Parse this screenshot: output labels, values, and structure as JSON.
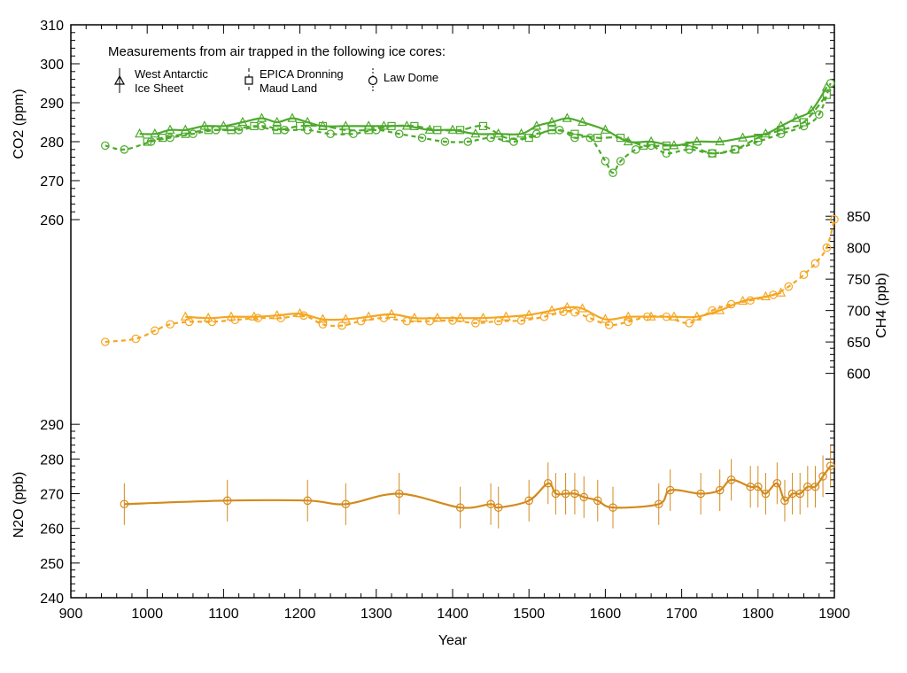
{
  "colors": {
    "co2": "#4daa2c",
    "ch4": "#f5a623",
    "n2o": "#d48a1c",
    "axis": "#000000"
  },
  "legend": {
    "title": "Measurements from air trapped in the following ice cores:",
    "items": [
      {
        "line1": "West Antarctic",
        "line2": "Ice Sheet",
        "marker": "triangle-icon"
      },
      {
        "line1": "EPICA Dronning",
        "line2": "Maud Land",
        "marker": "square-icon"
      },
      {
        "line1": "Law Dome",
        "line2": "",
        "marker": "circle-icon"
      }
    ]
  },
  "axes": {
    "x_title": "Year",
    "co2_title": "CO2 (ppm)",
    "ch4_title": "CH4 (ppb)",
    "n2o_title": "N2O (ppb)"
  },
  "chart_data": {
    "type": "scatter",
    "x_ticks": [
      900,
      1000,
      1100,
      1200,
      1300,
      1400,
      1500,
      1600,
      1700,
      1800,
      1900
    ],
    "xlim": [
      900,
      1900
    ],
    "xlabel": "Year",
    "panels": [
      {
        "name": "CO2",
        "ylabel": "CO2 (ppm)",
        "axis_side": "left",
        "ylim": [
          255,
          310
        ],
        "y_ticks": [
          260,
          270,
          280,
          290,
          300,
          310
        ],
        "series": [
          {
            "marker": "triangle",
            "x": [
              990,
              1010,
              1030,
              1050,
              1075,
              1100,
              1125,
              1150,
              1170,
              1190,
              1210,
              1230,
              1260,
              1290,
              1310,
              1340,
              1370,
              1400,
              1430,
              1460,
              1490,
              1510,
              1530,
              1550,
              1570,
              1600,
              1630,
              1660,
              1690,
              1720,
              1750,
              1780,
              1810,
              1830,
              1850,
              1870,
              1890
            ],
            "y": [
              282,
              282,
              283,
              283,
              284,
              284,
              285,
              286,
              285,
              286,
              285,
              284,
              284,
              284,
              284,
              284,
              283,
              283,
              282,
              282,
              282,
              284,
              285,
              286,
              285,
              283,
              280,
              280,
              279,
              280,
              280,
              281,
              282,
              284,
              286,
              288,
              294
            ]
          },
          {
            "marker": "square",
            "x": [
              1000,
              1020,
              1050,
              1080,
              1110,
              1140,
              1170,
              1200,
              1230,
              1260,
              1290,
              1320,
              1350,
              1380,
              1410,
              1440,
              1470,
              1500,
              1530,
              1560,
              1590,
              1620,
              1650,
              1680,
              1710,
              1740,
              1770,
              1800,
              1830,
              1860,
              1890
            ],
            "y": [
              280,
              281,
              282,
              283,
              283,
              284,
              283,
              284,
              284,
              283,
              283,
              284,
              284,
              283,
              283,
              284,
              281,
              281,
              283,
              282,
              281,
              281,
              279,
              279,
              279,
              277,
              278,
              281,
              283,
              285,
              292
            ]
          },
          {
            "marker": "circle",
            "x": [
              945,
              970,
              1005,
              1030,
              1060,
              1090,
              1120,
              1150,
              1180,
              1210,
              1240,
              1270,
              1300,
              1330,
              1360,
              1390,
              1420,
              1450,
              1480,
              1510,
              1540,
              1560,
              1580,
              1600,
              1610,
              1620,
              1640,
              1660,
              1680,
              1710,
              1740,
              1770,
              1800,
              1830,
              1860,
              1880,
              1895
            ],
            "y": [
              279,
              278,
              280,
              281,
              282,
              283,
              283,
              284,
              283,
              283,
              282,
              282,
              283,
              282,
              281,
              280,
              280,
              281,
              280,
              282,
              283,
              281,
              281,
              275,
              272,
              275,
              278,
              279,
              277,
              278,
              277,
              278,
              280,
              282,
              284,
              287,
              295
            ]
          }
        ]
      },
      {
        "name": "CH4",
        "ylabel": "CH4 (ppb)",
        "axis_side": "right",
        "ylim": [
          560,
          870
        ],
        "y_ticks": [
          600,
          650,
          700,
          750,
          800,
          850
        ],
        "series": [
          {
            "marker": "triangle",
            "x": [
              1050,
              1080,
              1110,
              1140,
              1170,
              1200,
              1230,
              1260,
              1290,
              1320,
              1350,
              1380,
              1410,
              1440,
              1470,
              1500,
              1530,
              1550,
              1570,
              1600,
              1630,
              1660,
              1690,
              1720,
              1750,
              1780,
              1810,
              1830
            ],
            "y": [
              690,
              688,
              690,
              690,
              692,
              695,
              686,
              686,
              690,
              694,
              688,
              688,
              688,
              688,
              690,
              693,
              700,
              705,
              703,
              686,
              690,
              690,
              690,
              690,
              700,
              715,
              722,
              728
            ]
          },
          {
            "marker": "circle",
            "x": [
              945,
              985,
              1010,
              1030,
              1055,
              1085,
              1115,
              1145,
              1175,
              1205,
              1230,
              1255,
              1280,
              1310,
              1340,
              1370,
              1400,
              1430,
              1460,
              1490,
              1520,
              1545,
              1560,
              1580,
              1605,
              1630,
              1655,
              1680,
              1710,
              1740,
              1765,
              1790,
              1820,
              1840,
              1860,
              1875,
              1890,
              1900
            ],
            "y": [
              650,
              655,
              668,
              678,
              682,
              682,
              685,
              688,
              688,
              692,
              678,
              676,
              683,
              688,
              683,
              683,
              684,
              680,
              683,
              684,
              690,
              698,
              697,
              688,
              677,
              682,
              690,
              690,
              680,
              700,
              710,
              716,
              725,
              738,
              757,
              775,
              800,
              845
            ]
          }
        ]
      },
      {
        "name": "N2O",
        "ylabel": "N2O (ppb)",
        "axis_side": "left",
        "ylim": [
          240,
          300
        ],
        "y_ticks": [
          240,
          250,
          260,
          270,
          280,
          290
        ],
        "series": [
          {
            "marker": "circle-errorbar",
            "error": 6,
            "x": [
              970,
              1105,
              1210,
              1260,
              1330,
              1410,
              1450,
              1460,
              1500,
              1525,
              1535,
              1548,
              1560,
              1572,
              1590,
              1610,
              1670,
              1685,
              1725,
              1750,
              1765,
              1790,
              1800,
              1810,
              1825,
              1835,
              1845,
              1855,
              1865,
              1875,
              1885,
              1895
            ],
            "y": [
              267,
              268,
              268,
              267,
              270,
              266,
              267,
              266,
              268,
              273,
              270,
              270,
              270,
              269,
              268,
              266,
              267,
              271,
              270,
              271,
              274,
              272,
              272,
              270,
              273,
              268,
              270,
              270,
              272,
              272,
              275,
              278
            ]
          }
        ]
      }
    ]
  }
}
